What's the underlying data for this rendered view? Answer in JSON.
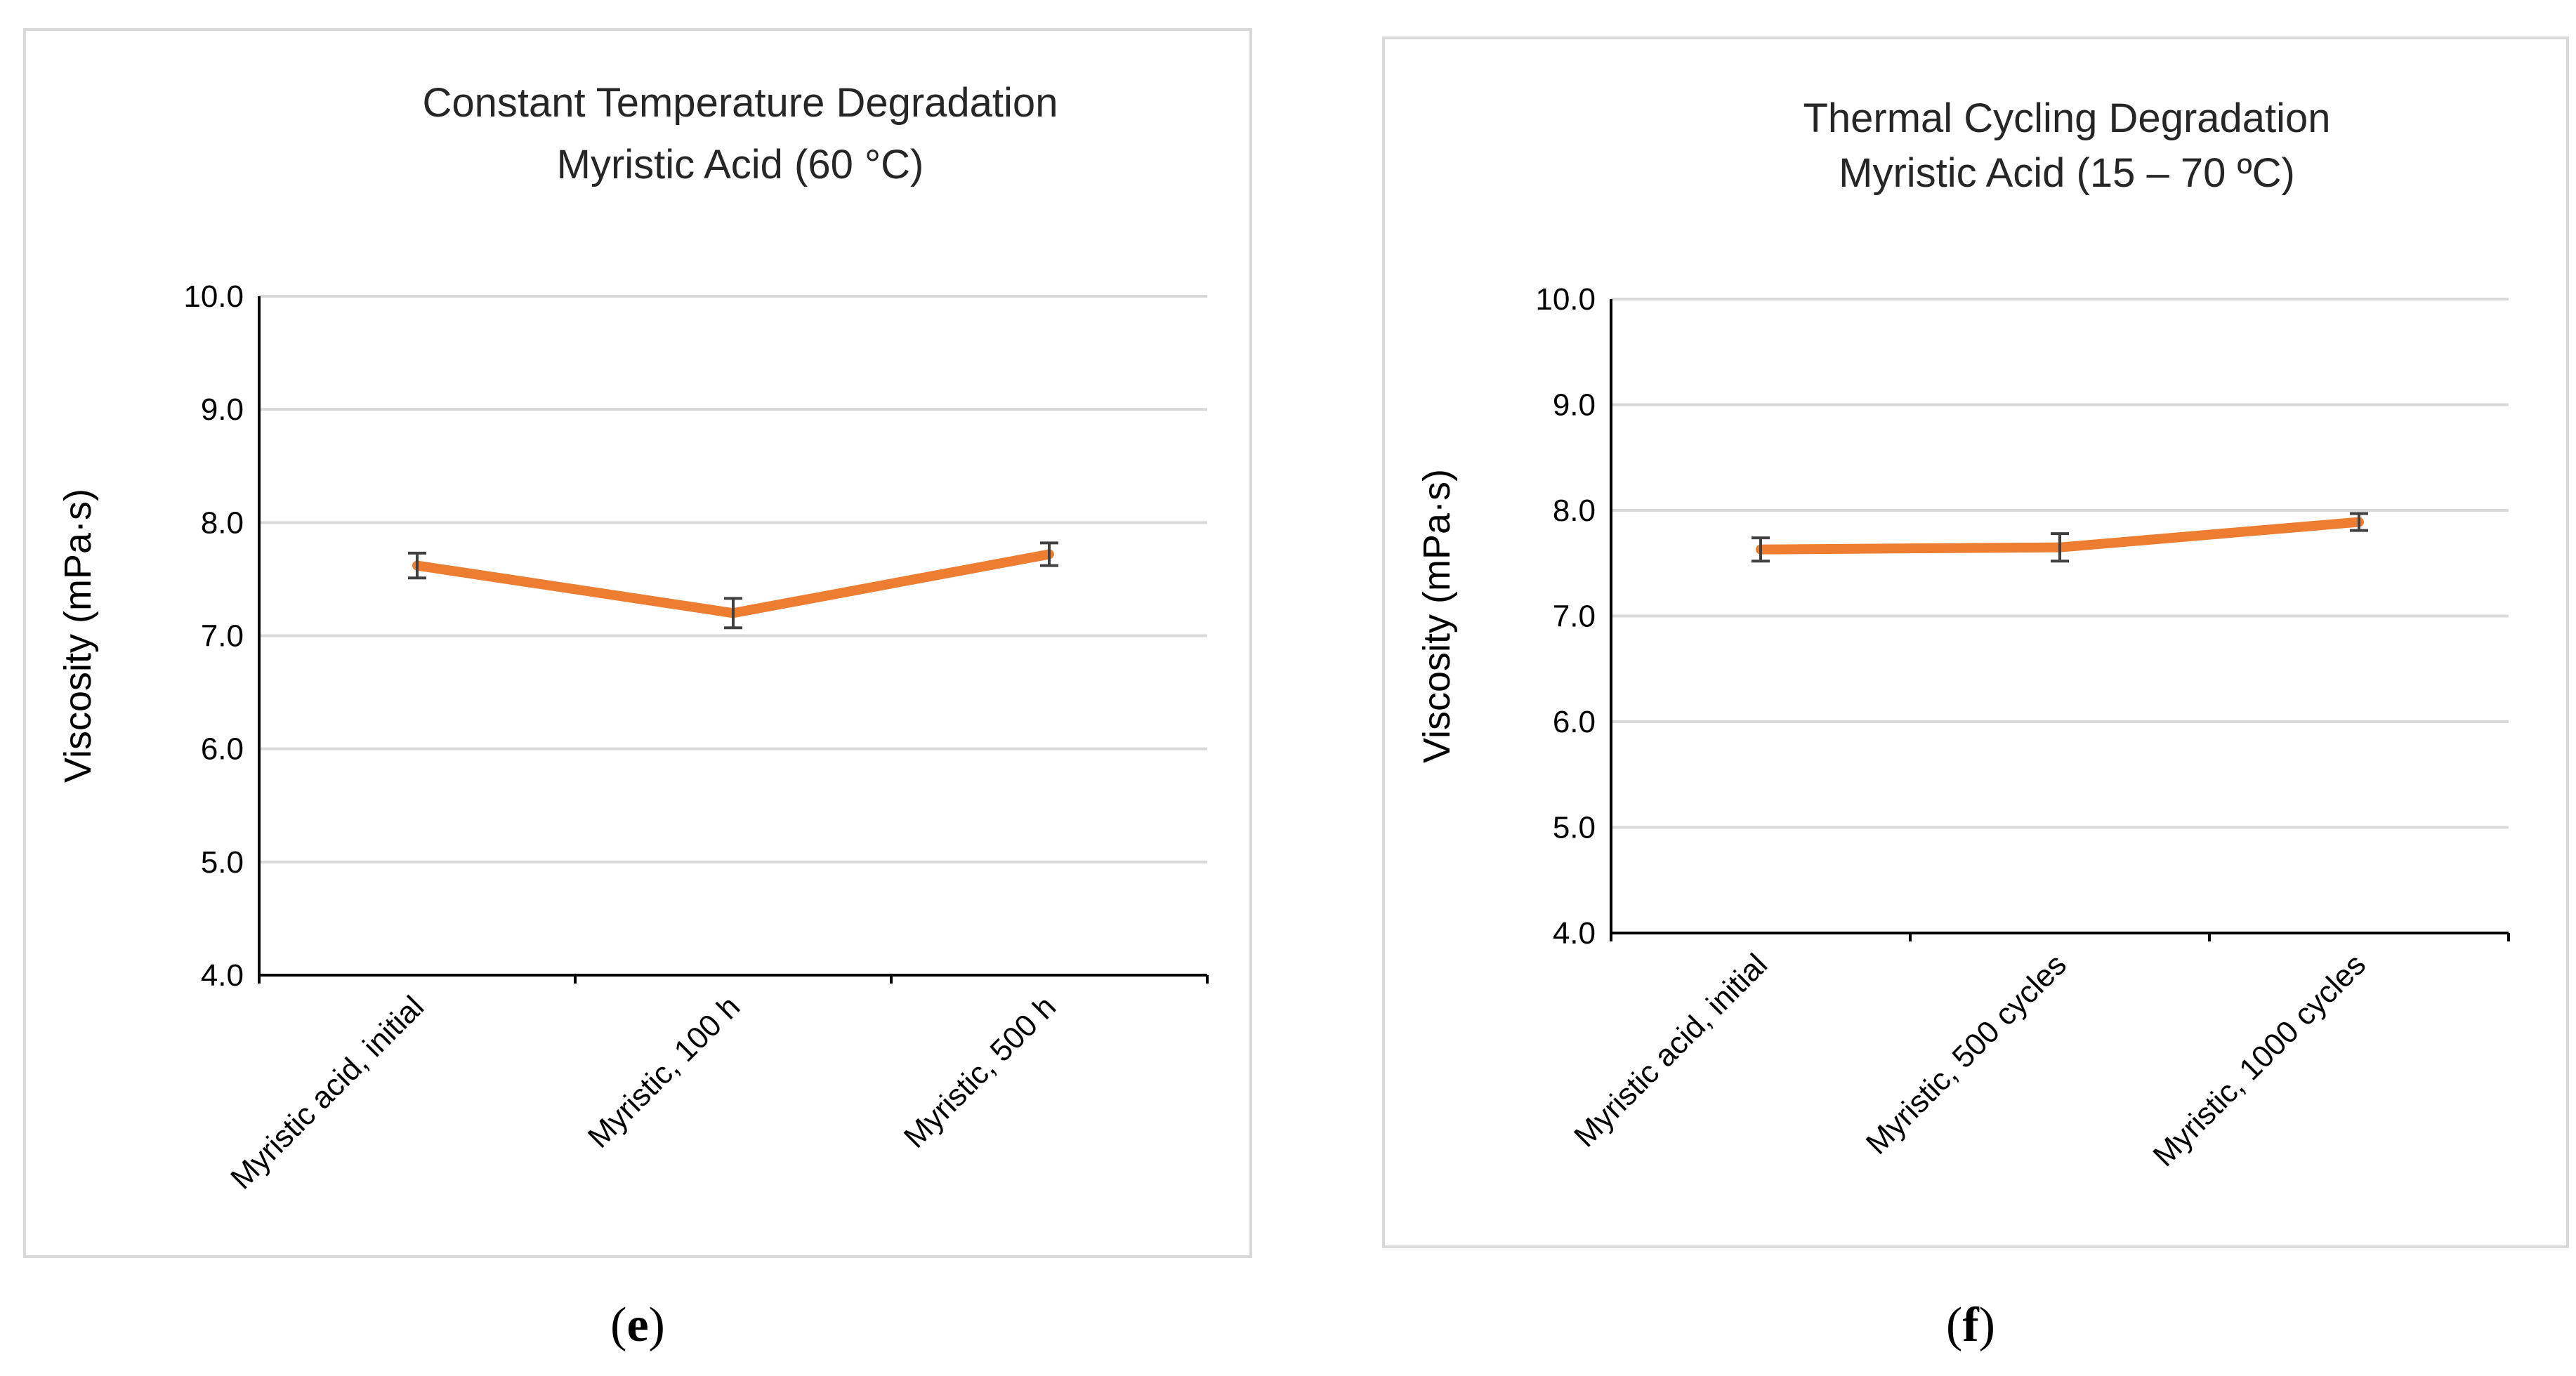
{
  "chart_data": [
    {
      "type": "line",
      "title": "Constant Temperature Degradation",
      "subtitle": "Myristic Acid (60 °C)",
      "ylabel": "Viscosity (mPa·s)",
      "xlabel": "",
      "categories": [
        "Myristic acid, initial",
        "Myristic, 100 h",
        "Myristic, 500 h"
      ],
      "series": [
        {
          "values": [
            7.62,
            7.2,
            7.72
          ],
          "errors": [
            0.11,
            0.13,
            0.1
          ]
        }
      ],
      "ylim": [
        4.0,
        10.0
      ],
      "yticks": [
        "4.0",
        "5.0",
        "6.0",
        "7.0",
        "8.0",
        "9.0",
        "10.0"
      ],
      "grid": true,
      "legend": "none",
      "line_color": "#ed7d31",
      "error_color": "#404040"
    },
    {
      "type": "line",
      "title": "Thermal Cycling Degradation",
      "subtitle": "Myristic Acid (15 – 70 ºC)",
      "ylabel": "Viscosity (mPa·s)",
      "xlabel": "",
      "categories": [
        "Myristic acid, initial",
        "Myristic, 500 cycles",
        "Myristic, 1000 cycles"
      ],
      "series": [
        {
          "values": [
            7.63,
            7.65,
            7.89
          ],
          "errors": [
            0.11,
            0.13,
            0.08
          ]
        }
      ],
      "ylim": [
        4.0,
        10.0
      ],
      "yticks": [
        "4.0",
        "5.0",
        "6.0",
        "7.0",
        "8.0",
        "9.0",
        "10.0"
      ],
      "grid": true,
      "legend": "none",
      "line_color": "#ed7d31",
      "error_color": "#404040"
    }
  ],
  "captions": {
    "e": {
      "open": "(",
      "letter": "e",
      "close": ")"
    },
    "f": {
      "open": "(",
      "letter": "f",
      "close": ")"
    }
  }
}
